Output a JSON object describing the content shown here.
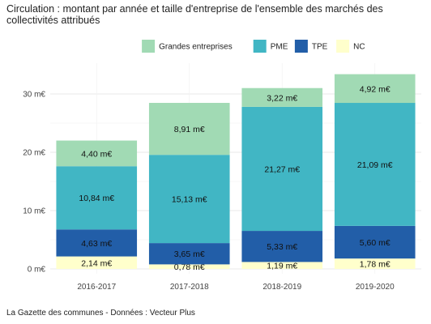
{
  "chart_data": {
    "type": "bar",
    "stacked": true,
    "title": "Circulation : montant par année et taille d'entreprise de l'ensemble des marchés des collectivités attribués",
    "xlabel": "",
    "ylabel": "",
    "categories": [
      "2016-2017",
      "2017-2018",
      "2018-2019",
      "2019-2020"
    ],
    "series": [
      {
        "name": "NC",
        "color": "#ffffcc",
        "values": [
          2.14,
          0.78,
          1.19,
          1.78
        ],
        "labels": [
          "2,14 m€",
          "0,78 m€",
          "1,19 m€",
          "1,78 m€"
        ]
      },
      {
        "name": "TPE",
        "color": "#225ea8",
        "values": [
          4.63,
          3.65,
          5.33,
          5.6
        ],
        "labels": [
          "4,63 m€",
          "3,65 m€",
          "5,33 m€",
          "5,60 m€"
        ]
      },
      {
        "name": "PME",
        "color": "#41b6c4",
        "values": [
          10.84,
          15.13,
          21.27,
          21.09
        ],
        "labels": [
          "10,84 m€",
          "15,13 m€",
          "21,27 m€",
          "21,09 m€"
        ]
      },
      {
        "name": "Grandes entreprises",
        "color": "#a1dab4",
        "values": [
          4.4,
          8.91,
          3.22,
          4.92
        ],
        "labels": [
          "4,40 m€",
          "8,91 m€",
          "3,22 m€",
          "4,92 m€"
        ]
      }
    ],
    "legend_order": [
      "Grandes entreprises",
      "PME",
      "TPE",
      "NC"
    ],
    "legend_position": "top",
    "yticks": [
      0,
      10,
      20,
      30
    ],
    "ytick_labels": [
      "0 m€",
      "10 m€",
      "20 m€",
      "30 m€"
    ],
    "ylim": [
      0,
      34
    ],
    "grid": true
  },
  "caption": "La Gazette des communes - Données : Vecteur Plus"
}
